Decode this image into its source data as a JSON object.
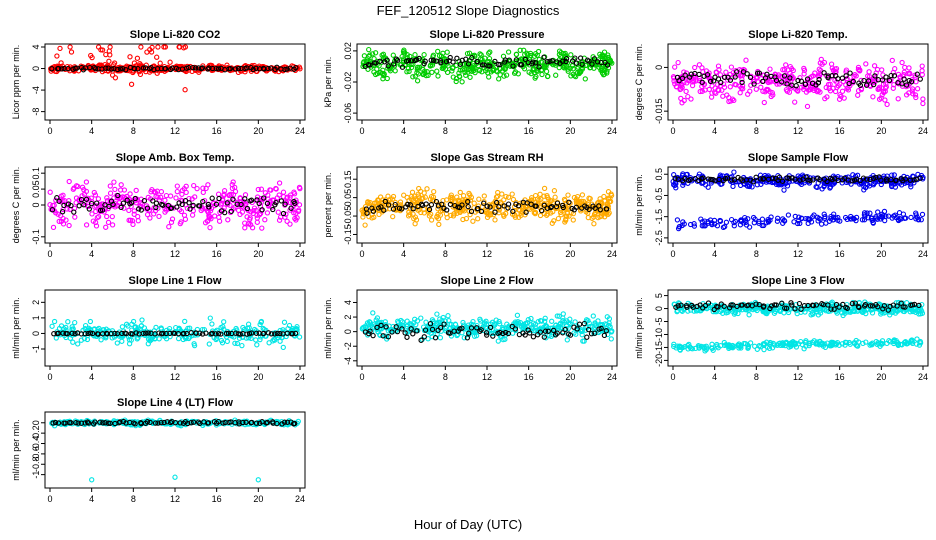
{
  "page_title": "FEF_120512  Slope Diagnostics",
  "x_label": "Hour of Day (UTC)",
  "chart_data": [
    {
      "type": "scatter",
      "title": "Slope Li-820 CO2",
      "ylabel": "Licor ppm per min.",
      "xlim": [
        0,
        24
      ],
      "ylim": [
        -9,
        4
      ],
      "yticks": [
        -8,
        -4,
        0,
        4
      ],
      "xticks": [
        0,
        4,
        8,
        12,
        16,
        20,
        24
      ],
      "color": "#ff0000",
      "base": 0,
      "spread": 0.45,
      "density": 330,
      "outliers": true,
      "secondBand": null,
      "overlay": {
        "base": 0,
        "spread": 0.25
      }
    },
    {
      "type": "scatter",
      "title": "Slope Li-820 Pressure",
      "ylabel": "kPa per min.",
      "xlim": [
        0,
        24
      ],
      "ylim": [
        -0.065,
        0.025
      ],
      "yticks": [
        -0.06,
        -0.02,
        0.02
      ],
      "xticks": [
        0,
        4,
        8,
        12,
        16,
        20,
        24
      ],
      "color": "#00cc00",
      "base": 0.002,
      "spread": 0.012,
      "density": 440,
      "outliers": false,
      "secondBand": null,
      "overlay": {
        "base": 0.005,
        "spread": 0.007
      }
    },
    {
      "type": "scatter",
      "title": "Slope Li-820 Temp.",
      "ylabel": "degrees C per min.",
      "xlim": [
        0,
        24
      ],
      "ylim": [
        -0.017,
        0.007
      ],
      "yticks": [
        -0.015,
        0.0
      ],
      "xticks": [
        0,
        4,
        8,
        12,
        16,
        20,
        24
      ],
      "color": "#ff00ff",
      "base": -0.005,
      "spread": 0.0045,
      "density": 380,
      "outliers": false,
      "secondBand": null,
      "overlay": {
        "base": -0.004,
        "spread": 0.003
      }
    },
    {
      "type": "scatter",
      "title": "Slope Amb. Box Temp.",
      "ylabel": "degrees C per min.",
      "xlim": [
        0,
        24
      ],
      "ylim": [
        -0.11,
        0.11
      ],
      "yticks": [
        -0.1,
        0.0,
        0.05,
        0.1
      ],
      "xticks": [
        0,
        4,
        8,
        12,
        16,
        20,
        24
      ],
      "color": "#ff00ff",
      "base": 0.0,
      "spread": 0.045,
      "density": 380,
      "outliers": false,
      "secondBand": null,
      "overlay": {
        "base": 0.0,
        "spread": 0.03
      }
    },
    {
      "type": "scatter",
      "title": "Slope Gas Stream RH",
      "ylabel": "percent per min.",
      "xlim": [
        0,
        24
      ],
      "ylim": [
        -0.18,
        0.2
      ],
      "yticks": [
        -0.15,
        -0.05,
        0.05,
        0.15
      ],
      "xticks": [
        0,
        4,
        8,
        12,
        16,
        20,
        24
      ],
      "color": "#ffaa00",
      "base": 0.0,
      "spread": 0.055,
      "density": 460,
      "outliers": false,
      "secondBand": null,
      "overlay": {
        "base": 0.0,
        "spread": 0.035
      }
    },
    {
      "type": "scatter",
      "title": "Slope Sample Flow",
      "ylabel": "ml/min per min.",
      "xlim": [
        0,
        24
      ],
      "ylim": [
        -2.6,
        0.7
      ],
      "yticks": [
        -2.5,
        -1.5,
        -0.5,
        0.5
      ],
      "xticks": [
        0,
        4,
        8,
        12,
        16,
        20,
        24
      ],
      "color": "#0000ee",
      "base": 0.2,
      "spread": 0.22,
      "density": 300,
      "outliers": false,
      "secondBand": {
        "base": -1.65,
        "spread": 0.3,
        "density": 160
      },
      "overlay": {
        "base": 0.25,
        "spread": 0.12
      }
    },
    {
      "type": "scatter",
      "title": "Slope Line 1 Flow",
      "ylabel": "ml/min per min.",
      "xlim": [
        0,
        24
      ],
      "ylim": [
        -1.9,
        2.6
      ],
      "yticks": [
        -1,
        0,
        1,
        2
      ],
      "xticks": [
        0,
        4,
        8,
        12,
        16,
        20,
        24
      ],
      "color": "#00e5e5",
      "base": 0.0,
      "spread": 0.5,
      "density": 300,
      "outliers": false,
      "secondBand": null,
      "overlay": {
        "base": 0.0,
        "spread": 0.05
      }
    },
    {
      "type": "scatter",
      "title": "Slope Line 2 Flow",
      "ylabel": "ml/min per min.",
      "xlim": [
        0,
        24
      ],
      "ylim": [
        -4.3,
        5.3
      ],
      "yticks": [
        -4,
        -2,
        0,
        2,
        4
      ],
      "xticks": [
        0,
        4,
        8,
        12,
        16,
        20,
        24
      ],
      "color": "#00e5e5",
      "base": 0.5,
      "spread": 1.0,
      "density": 380,
      "outliers": false,
      "secondBand": null,
      "overlay": {
        "base": 0.0,
        "spread": 1.2
      }
    },
    {
      "type": "scatter",
      "title": "Slope Line 3 Flow",
      "ylabel": "ml/min per min.",
      "xlim": [
        0,
        24
      ],
      "ylim": [
        -21,
        6
      ],
      "yticks": [
        -20,
        -15,
        -10,
        -5,
        0,
        5
      ],
      "xticks": [
        0,
        4,
        8,
        12,
        16,
        20,
        24
      ],
      "color": "#00e5e5",
      "base": 0.0,
      "spread": 1.5,
      "density": 380,
      "outliers": false,
      "secondBand": {
        "base": -14,
        "spread": 1.6,
        "density": 220
      },
      "overlay": {
        "base": 1.0,
        "spread": 1.5
      }
    },
    {
      "type": "scatter",
      "title": "Slope Line 4 (LT) Flow",
      "ylabel": "ml/min per min.",
      "xlim": [
        0,
        24
      ],
      "ylim": [
        -1.2,
        0.15
      ],
      "yticks": [
        -1.0,
        -0.8,
        -0.6,
        -0.4,
        -0.2,
        0.0
      ],
      "xticks": [
        0,
        4,
        8,
        12,
        16,
        20,
        24
      ],
      "color": "#00e5e5",
      "base": 0.0,
      "spread": 0.03,
      "density": 280,
      "outliers": false,
      "secondBand": null,
      "overlay": {
        "base": 0.0,
        "spread": 0.03
      },
      "extraPoints": [
        [
          4,
          -1.1
        ],
        [
          12,
          -1.05
        ],
        [
          20,
          -1.1
        ]
      ]
    }
  ]
}
